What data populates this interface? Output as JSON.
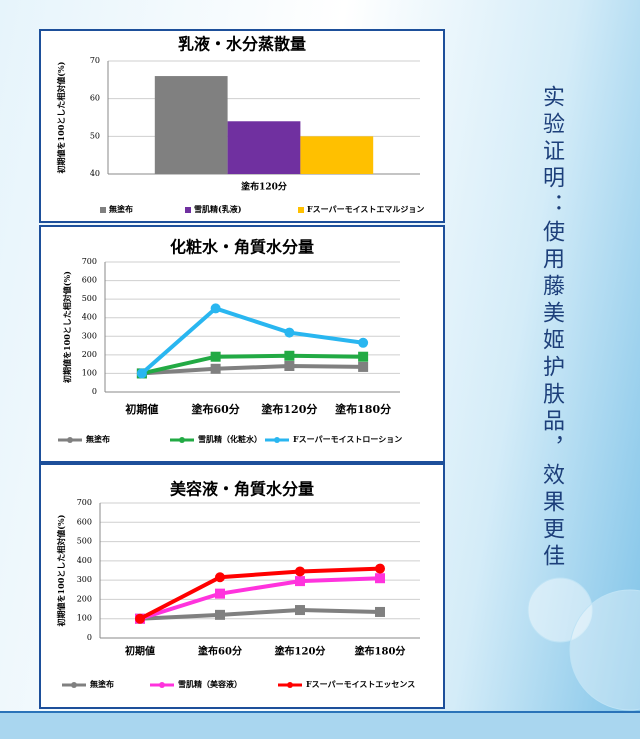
{
  "chart_data": [
    {
      "type": "bar",
      "title": "乳液・水分蒸散量",
      "y_label": "初期値を100とした相対値(%)",
      "categories": [
        "塗布120分"
      ],
      "series": [
        {
          "name": "無塗布",
          "color": "#808080",
          "values": [
            66
          ]
        },
        {
          "name": "雪肌精(乳液)",
          "color": "#7030a0",
          "values": [
            54
          ]
        },
        {
          "name": "Fスーパーモイストエマルジョン",
          "color": "#ffc000",
          "values": [
            50
          ]
        }
      ],
      "ylim": [
        40,
        70
      ],
      "yticks": [
        40,
        50,
        60,
        70
      ],
      "grid": true
    },
    {
      "type": "line",
      "title": "化粧水・角質水分量",
      "y_label": "初期値を100とした相対値(%)",
      "categories": [
        "初期値",
        "塗布60分",
        "塗布120分",
        "塗布180分"
      ],
      "series": [
        {
          "name": "無塗布",
          "color": "#808080",
          "values": [
            100,
            125,
            140,
            135
          ]
        },
        {
          "name": "雪肌精（化粧水）",
          "color": "#22aa44",
          "values": [
            100,
            190,
            195,
            190
          ]
        },
        {
          "name": "Fスーパーモイストローション",
          "color": "#29b6f0",
          "values": [
            100,
            450,
            320,
            265
          ]
        }
      ],
      "ylim": [
        0,
        700
      ],
      "yticks": [
        0,
        100,
        200,
        300,
        400,
        500,
        600,
        700
      ],
      "grid": true
    },
    {
      "type": "line",
      "title": "美容液・角質水分量",
      "y_label": "初期値を100とした相対値(%)",
      "categories": [
        "初期値",
        "塗布60分",
        "塗布120分",
        "塗布180分"
      ],
      "series": [
        {
          "name": "無塗布",
          "color": "#808080",
          "values": [
            100,
            120,
            145,
            135
          ]
        },
        {
          "name": "雪肌精（美容液）",
          "color": "#ff33dd",
          "values": [
            100,
            230,
            295,
            310
          ]
        },
        {
          "name": "Fスーパーモイストエッセンス",
          "color": "#ff0000",
          "values": [
            100,
            315,
            345,
            360
          ]
        }
      ],
      "ylim": [
        0,
        700
      ],
      "yticks": [
        0,
        100,
        200,
        300,
        400,
        500,
        600,
        700
      ],
      "grid": true
    }
  ],
  "side_text": "实验证明：使用藤美姬护肤品，效果更佳"
}
